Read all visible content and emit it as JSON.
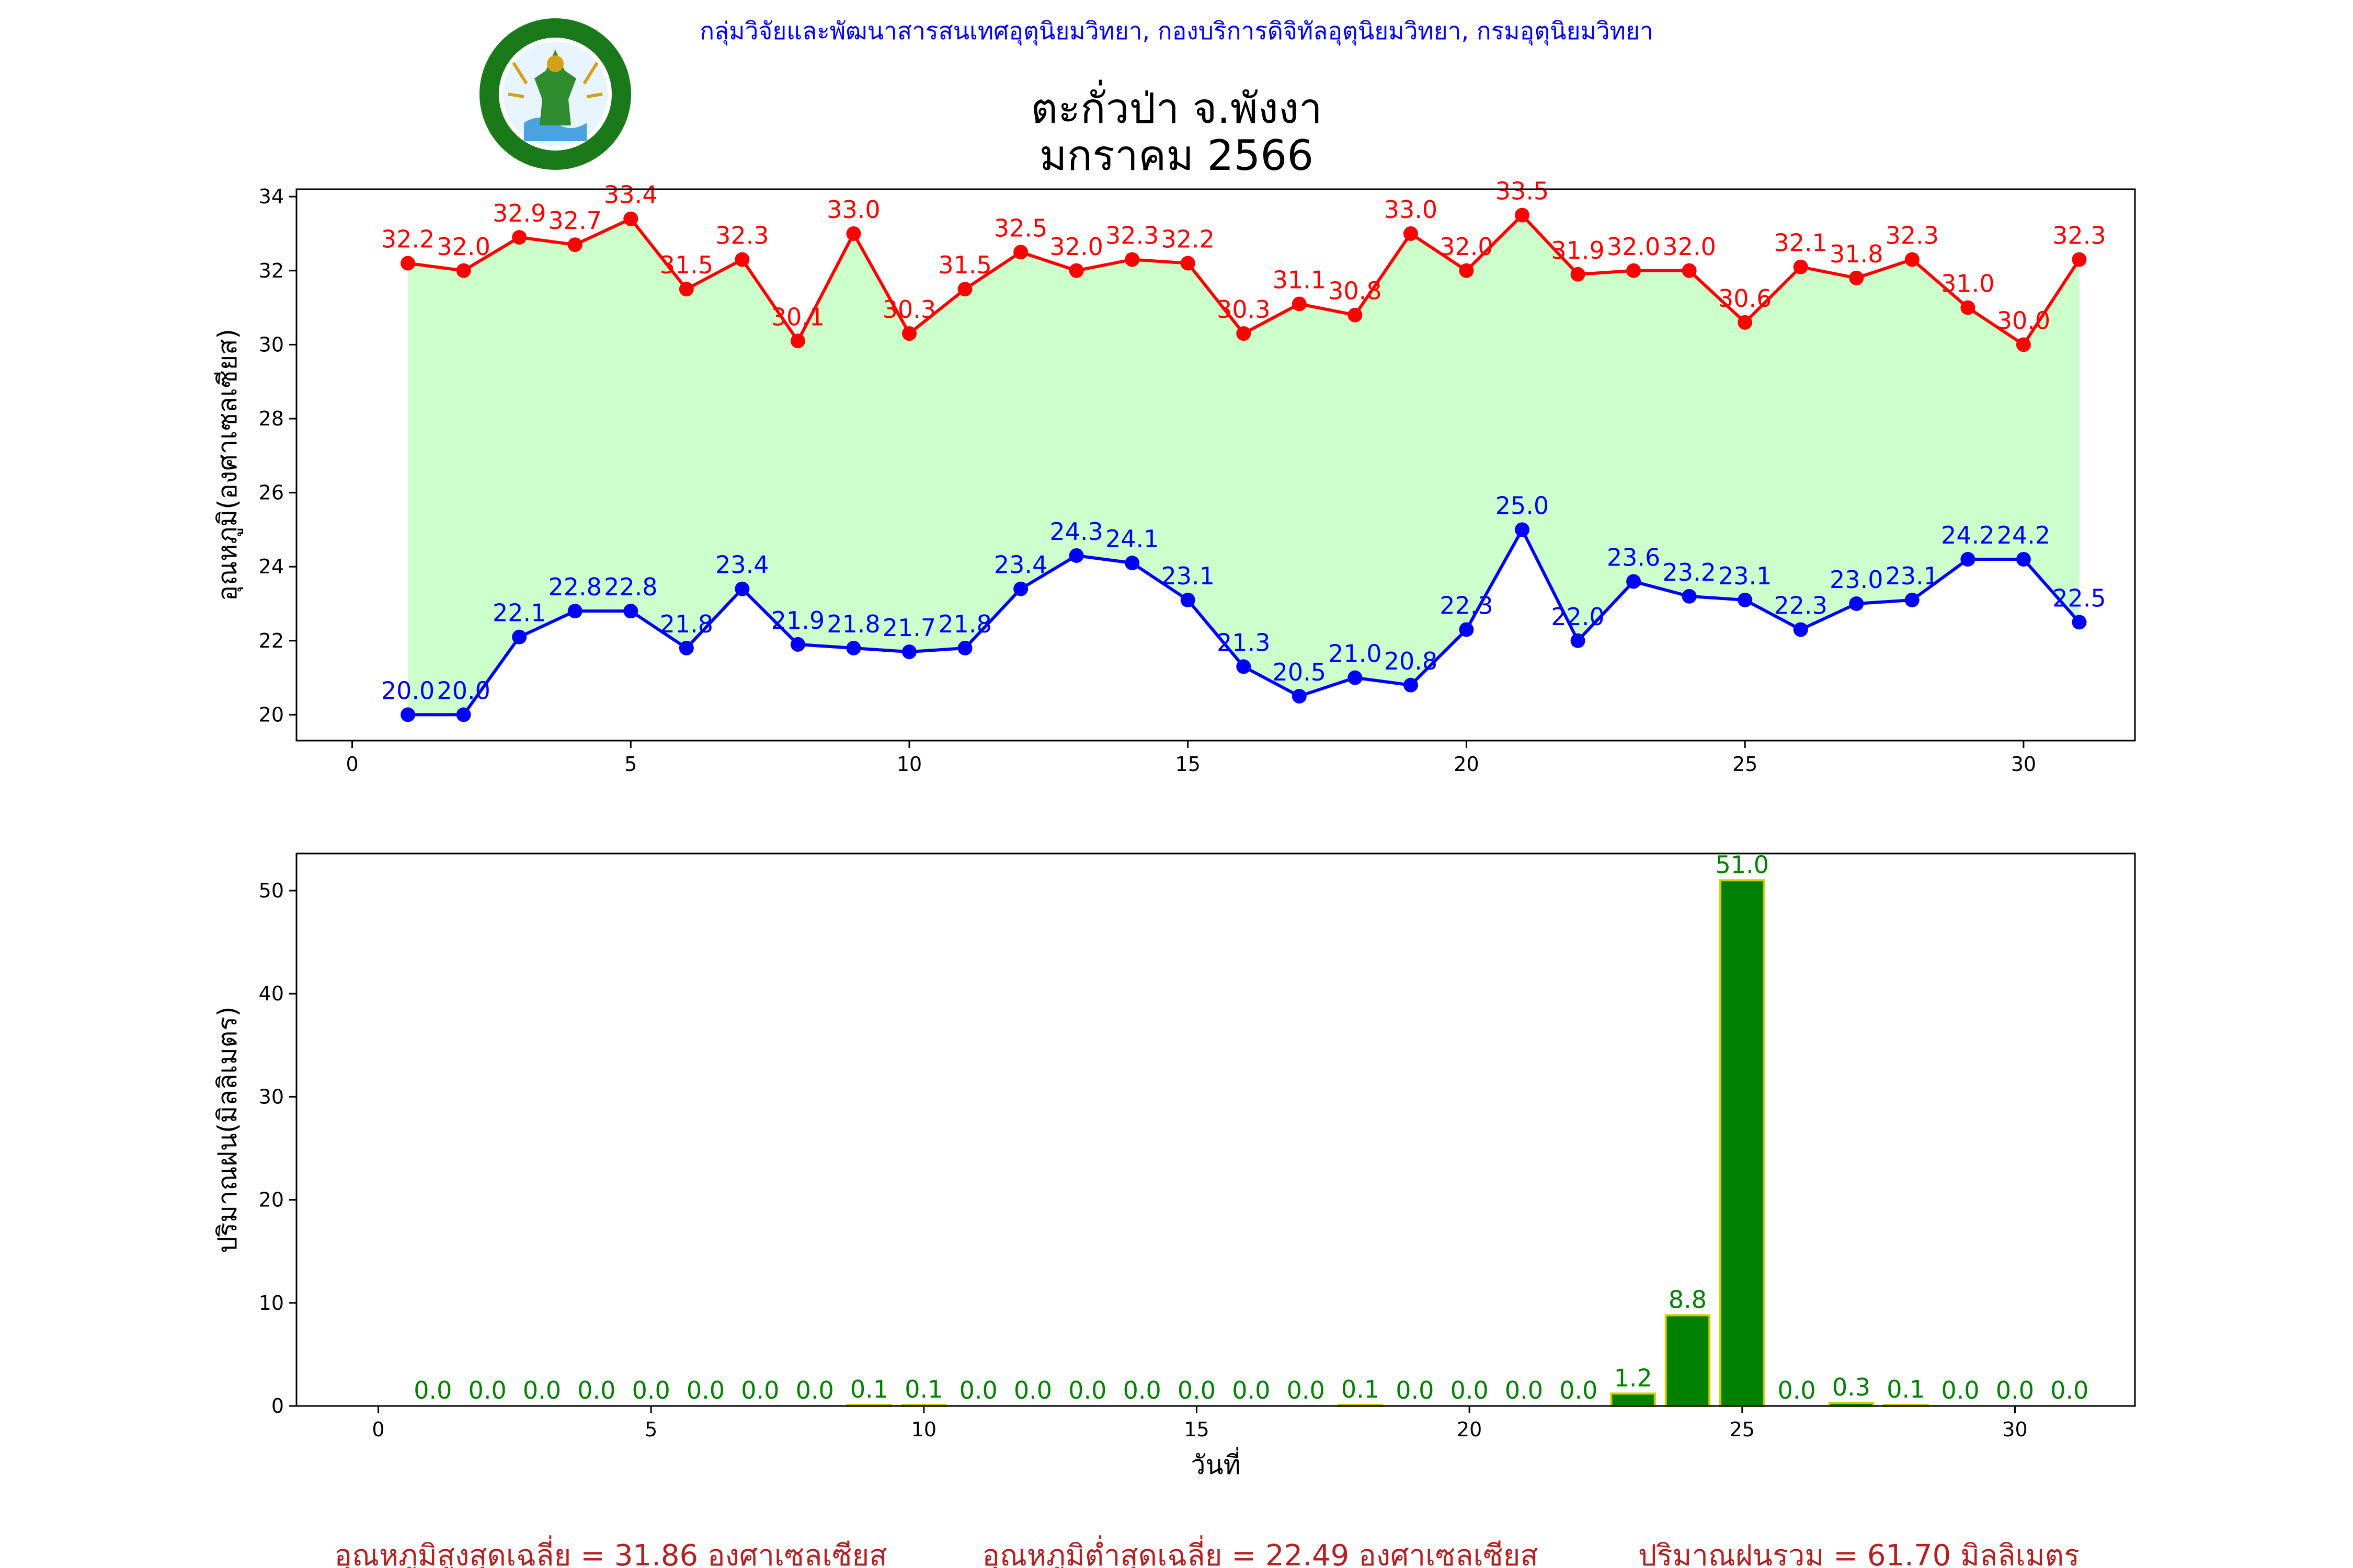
{
  "header": {
    "org_line": "กลุ่มวิจัยและพัฒนาสารสนเทศอุตุนิยมวิทยา, กองบริการดิจิทัลอุตุนิยมวิทยา, กรมอุตุนิยมวิทยา",
    "title_line1": "ตะกั่วป่า จ.พังงา",
    "title_line2": "มกราคม 2566",
    "logo_name": "thai-meteorological-department-logo"
  },
  "colors": {
    "max_line": "#ff0000",
    "min_line": "#0000ff",
    "fill": "#ccffcc",
    "rain_bar": "#008000",
    "rain_edge": "#cccc00",
    "rain_label": "#008000",
    "footer_text": "#b22222",
    "header_text": "#0000ff"
  },
  "chart_data": [
    {
      "type": "line",
      "ylabel": "อุณหภูมิ(องศาเซลเซียส)",
      "xlabel": "",
      "xlim": [
        -1,
        32
      ],
      "ylim": [
        19.3,
        34.2
      ],
      "xticks": [
        0,
        5,
        10,
        15,
        20,
        25,
        30
      ],
      "yticks": [
        20,
        22,
        24,
        26,
        28,
        30,
        32,
        34
      ],
      "x": [
        1,
        2,
        3,
        4,
        5,
        6,
        7,
        8,
        9,
        10,
        11,
        12,
        13,
        14,
        15,
        16,
        17,
        18,
        19,
        20,
        21,
        22,
        23,
        24,
        25,
        26,
        27,
        28,
        29,
        30,
        31
      ],
      "series": [
        {
          "key": "max",
          "values": [
            32.2,
            32.0,
            32.9,
            32.7,
            33.4,
            31.5,
            32.3,
            30.1,
            33.0,
            30.3,
            31.5,
            32.5,
            32.0,
            32.3,
            32.2,
            30.3,
            31.1,
            30.8,
            33.0,
            32.0,
            33.5,
            31.9,
            32.0,
            32.0,
            30.6,
            32.1,
            31.8,
            32.3,
            31.0,
            30.0,
            32.3
          ]
        },
        {
          "key": "min",
          "values": [
            20.0,
            20.0,
            22.1,
            22.8,
            22.8,
            21.8,
            23.4,
            21.9,
            21.8,
            21.7,
            21.8,
            23.4,
            24.3,
            24.1,
            23.1,
            21.3,
            20.5,
            21.0,
            20.8,
            22.3,
            25.0,
            22.0,
            23.6,
            23.2,
            23.1,
            22.3,
            23.0,
            23.1,
            24.2,
            24.2,
            22.5
          ]
        }
      ]
    },
    {
      "type": "bar",
      "ylabel": "ปริมาณฝน(มิลลิเมตร)",
      "xlabel": "วันที่",
      "xlim": [
        -1.5,
        32.2
      ],
      "ylim": [
        0,
        53.6
      ],
      "xticks": [
        0,
        5,
        10,
        15,
        20,
        25,
        30
      ],
      "yticks": [
        0,
        10,
        20,
        30,
        40,
        50
      ],
      "x": [
        1,
        2,
        3,
        4,
        5,
        6,
        7,
        8,
        9,
        10,
        11,
        12,
        13,
        14,
        15,
        16,
        17,
        18,
        19,
        20,
        21,
        22,
        23,
        24,
        25,
        26,
        27,
        28,
        29,
        30,
        31
      ],
      "values": [
        0.0,
        0.0,
        0.0,
        0.0,
        0.0,
        0.0,
        0.0,
        0.0,
        0.1,
        0.1,
        0.0,
        0.0,
        0.0,
        0.0,
        0.0,
        0.0,
        0.0,
        0.1,
        0.0,
        0.0,
        0.0,
        0.0,
        1.2,
        8.8,
        51.0,
        0.0,
        0.3,
        0.1,
        0.0,
        0.0,
        0.0
      ]
    }
  ],
  "footer": {
    "avg_max": "อุณหภูมิสูงสุดเฉลี่ย = 31.86 องศาเซลเซียส",
    "avg_min": "อุณหภูมิต่ำสุดเฉลี่ย = 22.49 องศาเซลเซียส",
    "total_rain": "ปริมาณฝนรวม = 61.70 มิลลิเมตร"
  }
}
